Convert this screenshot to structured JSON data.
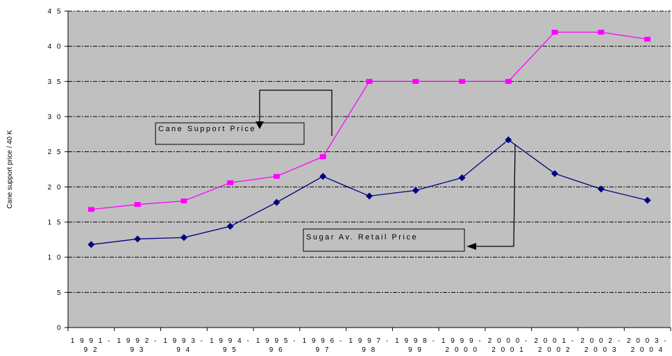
{
  "chart_data": {
    "type": "line",
    "ylabel": "Cane support price / 40 K",
    "ylim": [
      0,
      45
    ],
    "yticks": [
      "0",
      "5",
      "1 0",
      "1 5",
      "2 0",
      "2 5",
      "3 0",
      "3 5",
      "4 0",
      "4 5"
    ],
    "categories": [
      [
        "1 9 9 1 -",
        "9 2"
      ],
      [
        "1 9 9 2 -",
        "9 3"
      ],
      [
        "1 9 9 3 -",
        "9 4"
      ],
      [
        "1 9 9 4 -",
        "9 5"
      ],
      [
        "1 9 9 5 -",
        "9 6"
      ],
      [
        "1 9 9 6 -",
        "9 7"
      ],
      [
        "1 9 9 7 -",
        "9 8"
      ],
      [
        "1 9 9 8 -",
        "9 9"
      ],
      [
        "1 9 9 9 -",
        "2 0 0 0"
      ],
      [
        "2 0 0 0 -",
        "2 0 0 1"
      ],
      [
        "2 0 0 1 -",
        "2 0 0 2"
      ],
      [
        "2 0 0 2 -",
        "2 0 0 3"
      ],
      [
        "2 0 0 3 -",
        "2 0 0 4"
      ]
    ],
    "grid": true,
    "background": "#c0c0c0",
    "series": [
      {
        "name": "Cane Support Price",
        "color": "#ff00ff",
        "marker": "square",
        "values": [
          16.8,
          17.5,
          18.0,
          20.6,
          21.5,
          24.3,
          35.0,
          35.0,
          35.0,
          35.0,
          42.0,
          42.0,
          41.0
        ]
      },
      {
        "name": "Sugar Av. Retail Price",
        "color": "#000080",
        "marker": "diamond",
        "values": [
          11.8,
          12.6,
          12.8,
          14.4,
          17.8,
          21.5,
          18.7,
          19.5,
          21.3,
          26.7,
          21.9,
          19.7,
          18.1
        ]
      }
    ]
  }
}
